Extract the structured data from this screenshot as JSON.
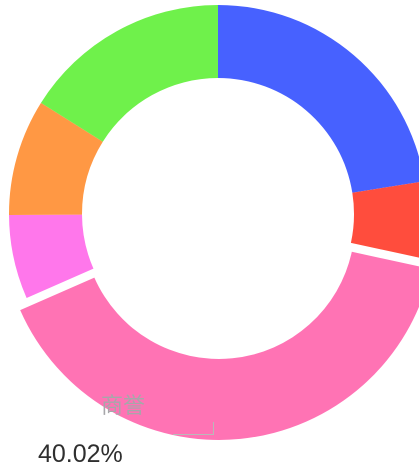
{
  "chart_data": {
    "type": "pie",
    "donut": true,
    "selected_label": "商誉",
    "selected_value": "40.02%",
    "slices": [
      {
        "value": 22.5,
        "color": "#4761ff"
      },
      {
        "value": 5.9,
        "color": "#ff4d3d"
      },
      {
        "value": 40.02,
        "color": "#ff73b4",
        "label": "商誉",
        "percent": "40.02%",
        "selected": true
      },
      {
        "value": 6.5,
        "color": "#ff77eb"
      },
      {
        "value": 9.0,
        "color": "#ff9844"
      },
      {
        "value": 16.08,
        "color": "#6ff14b"
      }
    ]
  }
}
